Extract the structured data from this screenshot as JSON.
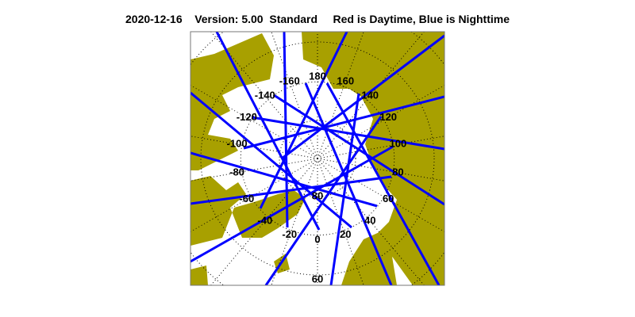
{
  "title": {
    "date": "2020-12-16",
    "version": "Version: 5.00",
    "mode": "Standard",
    "legend": "Red is Daytime, Blue is Nighttime"
  },
  "map": {
    "projection": "north polar stereographic",
    "land_color": "#A8A000",
    "ocean_color": "#FFFFFF",
    "track_color": "#0000FF",
    "grid": "dotted",
    "longitude_labels": [
      "-160",
      "180",
      "160",
      "140",
      "120",
      "100",
      "80",
      "60",
      "40",
      "20",
      "0",
      "-20",
      "-40",
      "-60",
      "-80",
      "-100",
      "-120",
      "-140"
    ],
    "latitude_labels": [
      "80",
      "60"
    ]
  }
}
